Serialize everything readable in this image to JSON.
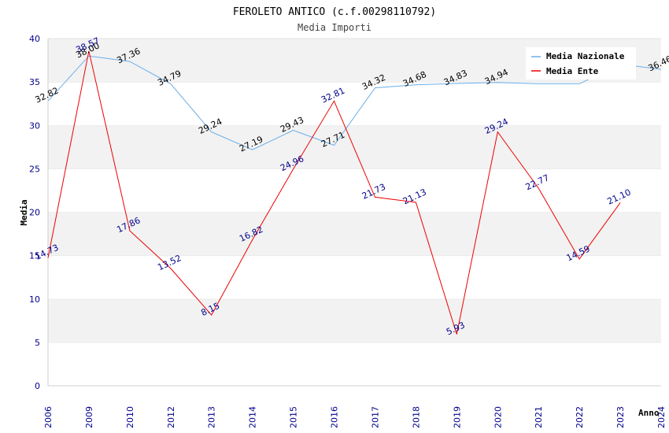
{
  "title": "FEROLETO ANTICO (c.f.00298110792)",
  "subtitle": "Media Importi",
  "chart_data": {
    "type": "line",
    "categories": [
      "2006",
      "2009",
      "2010",
      "2012",
      "2013",
      "2014",
      "2015",
      "2016",
      "2017",
      "2018",
      "2019",
      "2020",
      "2021",
      "2022",
      "2023",
      "2024"
    ],
    "series": [
      {
        "name": "Media Nazionale",
        "color": "#6aaeea",
        "values": [
          32.82,
          38.0,
          37.36,
          34.79,
          29.24,
          27.19,
          29.43,
          27.71,
          34.32,
          34.68,
          34.83,
          34.94,
          34.79,
          34.79,
          37.04,
          36.46
        ],
        "labels": [
          "32.82",
          "38.00",
          "37.36",
          "34.79",
          "29.24",
          "27.19",
          "29.43",
          "27.71",
          "34.32",
          "34.68",
          "34.83",
          "34.94",
          "",
          "",
          "",
          "36.46"
        ]
      },
      {
        "name": "Media Ente",
        "color": "#ee0000",
        "values": [
          14.73,
          38.57,
          17.86,
          13.52,
          8.15,
          16.82,
          24.96,
          32.81,
          21.73,
          21.13,
          5.93,
          29.24,
          22.77,
          14.59,
          21.1,
          null
        ],
        "labels": [
          "14.73",
          "38.57",
          "17.86",
          "13.52",
          "8.15",
          "16.82",
          "24.96",
          "32.81",
          "21.73",
          "21.13",
          "5.93",
          "29.24",
          "22.77",
          "14.59",
          "21.10",
          ""
        ]
      }
    ],
    "xlabel": "Anno",
    "ylabel": "Media",
    "ylim": [
      0,
      40
    ],
    "yticks": [
      0,
      5,
      10,
      15,
      20,
      25,
      30,
      35,
      40
    ],
    "grid": true,
    "legend": "top-right",
    "legend_entries": [
      "Media Nazionale",
      "Media Ente"
    ]
  }
}
